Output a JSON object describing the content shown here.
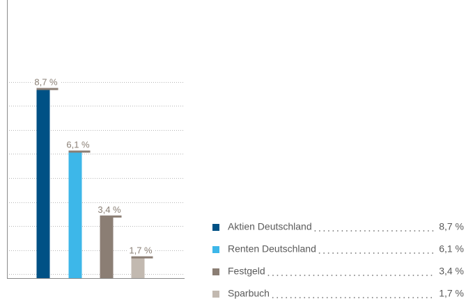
{
  "chart_data": {
    "type": "bar",
    "categories": [
      "Aktien Deutschland",
      "Renten Deutschland",
      "Festgeld",
      "Sparbuch"
    ],
    "values": [
      8.7,
      6.1,
      3.4,
      1.7
    ],
    "value_labels": [
      "8,7 %",
      "6,1 %",
      "3,4 %",
      "1,7 %"
    ],
    "colors": [
      "#005185",
      "#3db7e9",
      "#8b7e74",
      "#c2b9b0"
    ],
    "ylim": [
      0,
      12.4
    ],
    "yticks": [
      1,
      2,
      3,
      4,
      5,
      6,
      7,
      8,
      9
    ],
    "grid": true,
    "legend": "bottom-right"
  }
}
